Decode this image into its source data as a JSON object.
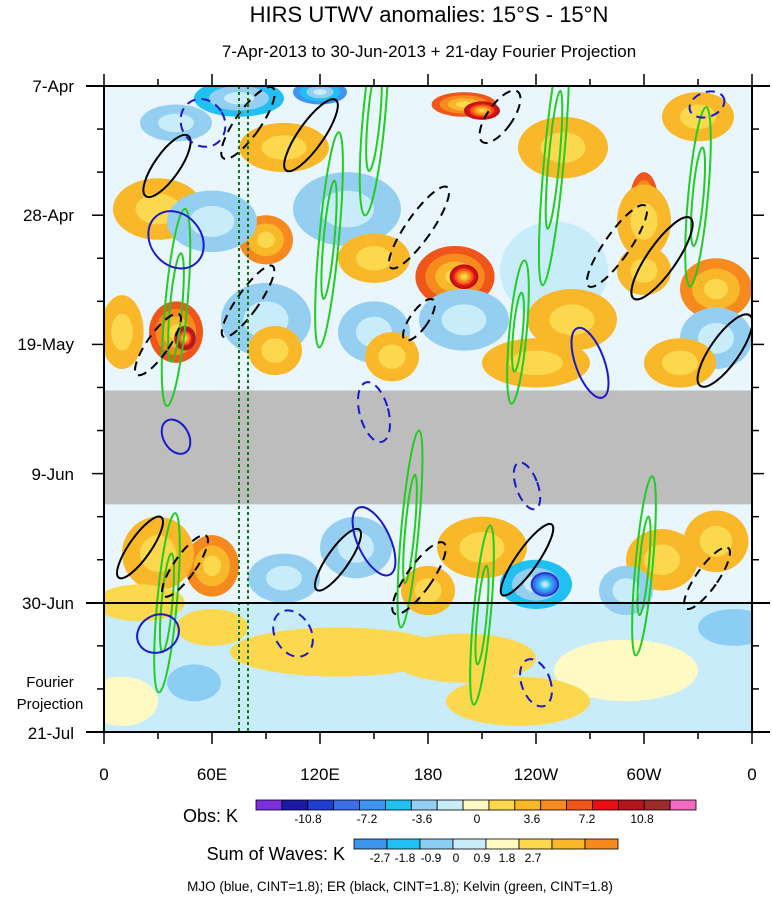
{
  "chart_data": {
    "type": "heatmap",
    "title": "HIRS UTWV anomalies: 15°S - 15°N",
    "subtitle": "7-Apr-2013 to 30-Jun-2013 + 21-day Fourier Projection",
    "x_tick_labels": [
      "0",
      "60E",
      "120E",
      "180",
      "120W",
      "60W",
      "0"
    ],
    "x_tick_values_deg_east": [
      0,
      60,
      120,
      180,
      240,
      300,
      360
    ],
    "y_tick_labels": [
      "7-Apr",
      "28-Apr",
      "19-May",
      "9-Jun",
      "30-Jun",
      "21-Jul"
    ],
    "y_tick_days_from_top": [
      0,
      21,
      42,
      63,
      84,
      105
    ],
    "observation_end_label": "30-Jun",
    "projection_label": [
      "Fourier",
      "Projection"
    ],
    "missing_data_band_days": [
      49.5,
      68
    ],
    "obs_colorbar": {
      "label": "Obs: K",
      "tick_labels": [
        "-10.8",
        "-7.2",
        "-3.6",
        "0",
        "3.6",
        "7.2",
        "10.8"
      ],
      "colors": [
        "#7b2fe0",
        "#1a1aa6",
        "#1f3ed1",
        "#3d6ee8",
        "#3e95ef",
        "#21c0f2",
        "#94cff2",
        "#c9ecfb",
        "#fffac4",
        "#fbd84d",
        "#f9b72a",
        "#f68a1e",
        "#f0561a",
        "#e80f12",
        "#b4141b",
        "#9c2b2b",
        "#f26ac2"
      ]
    },
    "waves_colorbar": {
      "label": "Sum of Waves: K",
      "tick_labels": [
        "-2.7",
        "-1.8",
        "-0.9",
        "0",
        "0.9",
        "1.8",
        "2.7"
      ],
      "colors": [
        "#3e95ef",
        "#21c0f2",
        "#8bcdf3",
        "#c9ecfb",
        "#fffac4",
        "#fbd84d",
        "#f9b72a",
        "#f68a1e"
      ]
    },
    "footer": "MJO (blue, CINT=1.8); ER (black, CINT=1.8); Kelvin (green, CINT=1.8)",
    "series": [
      {
        "name": "MJO",
        "color": "#1a1acc",
        "contour_interval": 1.8
      },
      {
        "name": "ER",
        "color": "#000000",
        "contour_interval": 1.8
      },
      {
        "name": "Kelvin",
        "color": "#22cc22",
        "contour_interval": 1.8
      }
    ],
    "reference_lines_deg_east": [
      75,
      80
    ],
    "blobs": [
      {
        "lon": 200,
        "day": 3,
        "rx": 18,
        "ry": 2,
        "v": 7
      },
      {
        "lon": 210,
        "day": 4,
        "rx": 10,
        "ry": 1.5,
        "v": 10
      },
      {
        "lon": 75,
        "day": 2,
        "rx": 25,
        "ry": 3,
        "v": -5
      },
      {
        "lon": 120,
        "day": 1,
        "rx": 15,
        "ry": 2,
        "v": -8
      },
      {
        "lon": 40,
        "day": 6,
        "rx": 20,
        "ry": 3,
        "v": -3
      },
      {
        "lon": 100,
        "day": 10,
        "rx": 25,
        "ry": 4,
        "v": 3
      },
      {
        "lon": 255,
        "day": 10,
        "rx": 25,
        "ry": 5,
        "v": 3
      },
      {
        "lon": 330,
        "day": 5,
        "rx": 20,
        "ry": 4,
        "v": 3
      },
      {
        "lon": 300,
        "day": 19,
        "rx": 8,
        "ry": 5,
        "v": 8
      },
      {
        "lon": 300,
        "day": 22,
        "rx": 15,
        "ry": 6,
        "v": 4
      },
      {
        "lon": 30,
        "day": 20,
        "rx": 25,
        "ry": 5,
        "v": 3
      },
      {
        "lon": 90,
        "day": 25,
        "rx": 15,
        "ry": 4,
        "v": 6
      },
      {
        "lon": 60,
        "day": 22,
        "rx": 25,
        "ry": 5,
        "v": -4
      },
      {
        "lon": 135,
        "day": 20,
        "rx": 30,
        "ry": 6,
        "v": -3
      },
      {
        "lon": 195,
        "day": 31,
        "rx": 22,
        "ry": 5,
        "v": 7
      },
      {
        "lon": 200,
        "day": 31,
        "rx": 8,
        "ry": 2,
        "v": 10
      },
      {
        "lon": 150,
        "day": 28,
        "rx": 20,
        "ry": 4,
        "v": 3
      },
      {
        "lon": 250,
        "day": 30,
        "rx": 30,
        "ry": 8,
        "v": -2.5
      },
      {
        "lon": 340,
        "day": 33,
        "rx": 20,
        "ry": 5,
        "v": 5
      },
      {
        "lon": 300,
        "day": 30,
        "rx": 15,
        "ry": 4,
        "v": 3
      },
      {
        "lon": 40,
        "day": 40,
        "rx": 15,
        "ry": 5,
        "v": 8
      },
      {
        "lon": 45,
        "day": 41,
        "rx": 6,
        "ry": 2,
        "v": 12
      },
      {
        "lon": 10,
        "day": 40,
        "rx": 12,
        "ry": 6,
        "v": 3
      },
      {
        "lon": 90,
        "day": 38,
        "rx": 25,
        "ry": 6,
        "v": -3
      },
      {
        "lon": 150,
        "day": 40,
        "rx": 20,
        "ry": 5,
        "v": -3
      },
      {
        "lon": 160,
        "day": 44,
        "rx": 15,
        "ry": 4,
        "v": 4
      },
      {
        "lon": 200,
        "day": 38,
        "rx": 25,
        "ry": 5,
        "v": -3
      },
      {
        "lon": 260,
        "day": 38,
        "rx": 25,
        "ry": 5,
        "v": 3
      },
      {
        "lon": 340,
        "day": 41,
        "rx": 20,
        "ry": 5,
        "v": -3
      },
      {
        "lon": 95,
        "day": 43,
        "rx": 15,
        "ry": 4,
        "v": 3
      },
      {
        "lon": 240,
        "day": 45,
        "rx": 30,
        "ry": 4,
        "v": 3
      },
      {
        "lon": 320,
        "day": 45,
        "rx": 20,
        "ry": 4,
        "v": 3
      },
      {
        "lon": 60,
        "day": 78,
        "rx": 15,
        "ry": 5,
        "v": 6
      },
      {
        "lon": 30,
        "day": 76,
        "rx": 20,
        "ry": 6,
        "v": 4
      },
      {
        "lon": 140,
        "day": 75,
        "rx": 20,
        "ry": 5,
        "v": -4
      },
      {
        "lon": 210,
        "day": 75,
        "rx": 25,
        "ry": 5,
        "v": 3
      },
      {
        "lon": 180,
        "day": 82,
        "rx": 15,
        "ry": 4,
        "v": 4
      },
      {
        "lon": 240,
        "day": 81,
        "rx": 20,
        "ry": 4,
        "v": -6
      },
      {
        "lon": 245,
        "day": 81,
        "rx": 8,
        "ry": 2,
        "v": -10
      },
      {
        "lon": 310,
        "day": 77,
        "rx": 20,
        "ry": 5,
        "v": 4
      },
      {
        "lon": 340,
        "day": 74,
        "rx": 18,
        "ry": 5,
        "v": 3
      },
      {
        "lon": 100,
        "day": 80,
        "rx": 20,
        "ry": 4,
        "v": -3
      },
      {
        "lon": 290,
        "day": 82,
        "rx": 15,
        "ry": 4,
        "v": -3
      },
      {
        "lon": 20,
        "day": 84,
        "rx": 25,
        "ry": 3,
        "v": 2
      }
    ],
    "projection_blobs": [
      {
        "lon": 130,
        "day": 92,
        "rx": 60,
        "ry": 4,
        "v": 1
      },
      {
        "lon": 200,
        "day": 93,
        "rx": 40,
        "ry": 4,
        "v": 1.2
      },
      {
        "lon": 60,
        "day": 88,
        "rx": 20,
        "ry": 3,
        "v": 1.2
      },
      {
        "lon": 290,
        "day": 95,
        "rx": 40,
        "ry": 5,
        "v": 0.6
      },
      {
        "lon": 230,
        "day": 100,
        "rx": 40,
        "ry": 4,
        "v": 1
      },
      {
        "lon": 50,
        "day": 97,
        "rx": 15,
        "ry": 3,
        "v": -1
      },
      {
        "lon": 350,
        "day": 88,
        "rx": 20,
        "ry": 3,
        "v": -1
      },
      {
        "lon": 10,
        "day": 100,
        "rx": 20,
        "ry": 4,
        "v": 0.8
      }
    ],
    "kelvin_contours": [
      {
        "lon": 150,
        "day": 5,
        "rx": 55,
        "ry": 1.8,
        "slope": -0.32
      },
      {
        "lon": 250,
        "day": 12,
        "rx": 70,
        "ry": 1.6,
        "slope": -0.32
      },
      {
        "lon": 330,
        "day": 18,
        "rx": 50,
        "ry": 1.6,
        "slope": -0.32
      },
      {
        "lon": 125,
        "day": 25,
        "rx": 60,
        "ry": 1.6,
        "slope": -0.32
      },
      {
        "lon": 40,
        "day": 36,
        "rx": 55,
        "ry": 1.8,
        "slope": -0.32
      },
      {
        "lon": 230,
        "day": 40,
        "rx": 40,
        "ry": 1.4,
        "slope": -0.32
      },
      {
        "lon": 170,
        "day": 72,
        "rx": 55,
        "ry": 1.4,
        "slope": -0.32
      },
      {
        "lon": 300,
        "day": 78,
        "rx": 50,
        "ry": 1.4,
        "slope": -0.32
      },
      {
        "lon": 35,
        "day": 84,
        "rx": 50,
        "ry": 1.6,
        "slope": -0.32
      },
      {
        "lon": 210,
        "day": 86,
        "rx": 50,
        "ry": 1.4,
        "slope": -0.32
      }
    ],
    "er_contours": [
      {
        "lon": 35,
        "day": 13,
        "rx": 7,
        "ry": 6,
        "rot": 35,
        "dashed": false
      },
      {
        "lon": 80,
        "day": 6,
        "rx": 7,
        "ry": 7,
        "rot": 35,
        "dashed": true
      },
      {
        "lon": 115,
        "day": 8,
        "rx": 7,
        "ry": 7,
        "rot": 35,
        "dashed": false
      },
      {
        "lon": 175,
        "day": 23,
        "rx": 7,
        "ry": 8,
        "rot": 35,
        "dashed": true
      },
      {
        "lon": 220,
        "day": 5,
        "rx": 7,
        "ry": 5,
        "rot": 35,
        "dashed": true
      },
      {
        "lon": 285,
        "day": 26,
        "rx": 7,
        "ry": 8,
        "rot": 35,
        "dashed": true
      },
      {
        "lon": 310,
        "day": 28,
        "rx": 8,
        "ry": 8,
        "rot": 35,
        "dashed": false
      },
      {
        "lon": 30,
        "day": 42,
        "rx": 6,
        "ry": 6,
        "rot": 35,
        "dashed": true
      },
      {
        "lon": 80,
        "day": 35,
        "rx": 6,
        "ry": 7,
        "rot": 35,
        "dashed": true
      },
      {
        "lon": 175,
        "day": 38,
        "rx": 5,
        "ry": 4,
        "rot": 35,
        "dashed": true
      },
      {
        "lon": 345,
        "day": 43,
        "rx": 8,
        "ry": 7,
        "rot": 35,
        "dashed": false
      },
      {
        "lon": 20,
        "day": 75,
        "rx": 6,
        "ry": 6,
        "rot": 35,
        "dashed": false
      },
      {
        "lon": 45,
        "day": 78,
        "rx": 6,
        "ry": 6,
        "rot": 35,
        "dashed": true
      },
      {
        "lon": 130,
        "day": 77,
        "rx": 6,
        "ry": 6,
        "rot": 35,
        "dashed": false
      },
      {
        "lon": 175,
        "day": 80,
        "rx": 7,
        "ry": 7,
        "rot": 35,
        "dashed": true
      },
      {
        "lon": 235,
        "day": 77,
        "rx": 6,
        "ry": 7,
        "rot": 35,
        "dashed": false
      },
      {
        "lon": 335,
        "day": 80,
        "rx": 6,
        "ry": 6,
        "rot": 35,
        "dashed": true
      }
    ],
    "mjo_contours": [
      {
        "lon": 55,
        "day": 6,
        "rx": 12,
        "ry": 4,
        "rot": -30,
        "dashed": true
      },
      {
        "lon": 40,
        "day": 25,
        "rx": 14,
        "ry": 5,
        "rot": -40,
        "dashed": false
      },
      {
        "lon": 270,
        "day": 45,
        "rx": 8,
        "ry": 6,
        "rot": -20,
        "dashed": false
      },
      {
        "lon": 150,
        "day": 53,
        "rx": 8,
        "ry": 5,
        "rot": -15,
        "dashed": true
      },
      {
        "lon": 40,
        "day": 57,
        "rx": 7,
        "ry": 3,
        "rot": -30,
        "dashed": false
      },
      {
        "lon": 150,
        "day": 74,
        "rx": 9,
        "ry": 6,
        "rot": -25,
        "dashed": false
      },
      {
        "lon": 235,
        "day": 65,
        "rx": 6,
        "ry": 4,
        "rot": -20,
        "dashed": true
      },
      {
        "lon": 30,
        "day": 89,
        "rx": 12,
        "ry": 3,
        "rot": -30,
        "dashed": false
      },
      {
        "lon": 105,
        "day": 89,
        "rx": 10,
        "ry": 4,
        "rot": -30,
        "dashed": true
      },
      {
        "lon": 240,
        "day": 97,
        "rx": 8,
        "ry": 4,
        "rot": -20,
        "dashed": true
      },
      {
        "lon": 335,
        "day": 3,
        "rx": 10,
        "ry": 2,
        "rot": -20,
        "dashed": true
      }
    ]
  }
}
